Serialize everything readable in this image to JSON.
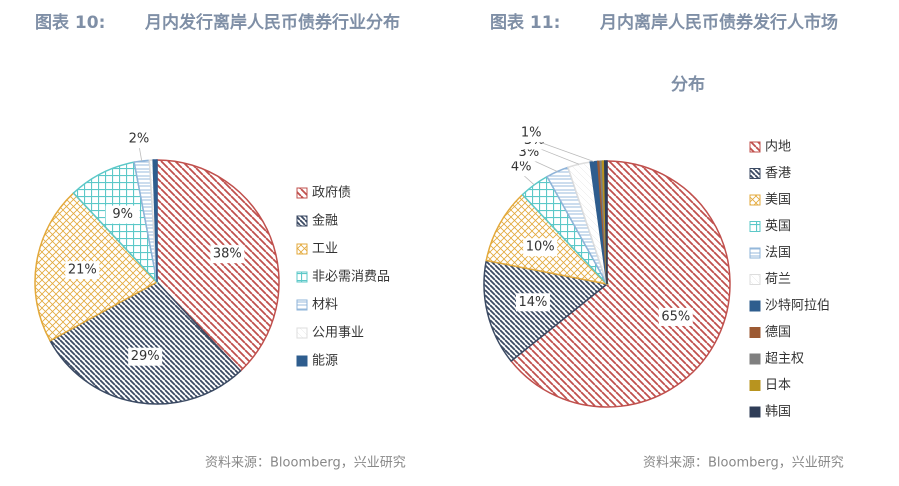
{
  "chart_data": [
    {
      "type": "pie",
      "label": "图表 10:",
      "title": "月内发行离岸人民币债券行业分布",
      "categories": [
        "政府债",
        "金融",
        "工业",
        "非必需消费品",
        "材料",
        "公用事业",
        "能源"
      ],
      "values": [
        38,
        29,
        21,
        9,
        2,
        0.5,
        0.5
      ],
      "value_labels": [
        "38%",
        "29%",
        "21%",
        "9%",
        "2%",
        null,
        null
      ],
      "colors": [
        "#c0504d",
        "#3b4a63",
        "#e3a93b",
        "#5cc8c8",
        "#8fb4d9",
        "#dddddd",
        "#2e5d8e"
      ],
      "source": "资料来源：Bloomberg，兴业研究"
    },
    {
      "type": "pie",
      "label": "图表 11:",
      "title": "月内离岸人民币债券发行人市场",
      "title2": "分布",
      "categories": [
        "内地",
        "香港",
        "美国",
        "英国",
        "法国",
        "荷兰",
        "沙特阿拉伯",
        "德国",
        "超主权",
        "日本",
        "韩国"
      ],
      "values": [
        65,
        14,
        10,
        4,
        3,
        3,
        1,
        0.3,
        0.3,
        0.3,
        0.3
      ],
      "value_labels": [
        "65%",
        "14%",
        "10%",
        "4%",
        "3%",
        "3%",
        "1%",
        null,
        null,
        null,
        null
      ],
      "colors": [
        "#c0504d",
        "#3b4a63",
        "#e3a93b",
        "#5cc8c8",
        "#8fb4d9",
        "#dddddd",
        "#2e5d8e",
        "#9c5a33",
        "#7f7f7f",
        "#b8941f",
        "#2f3d57"
      ],
      "source": "资料来源：Bloomberg，兴业研究"
    }
  ]
}
